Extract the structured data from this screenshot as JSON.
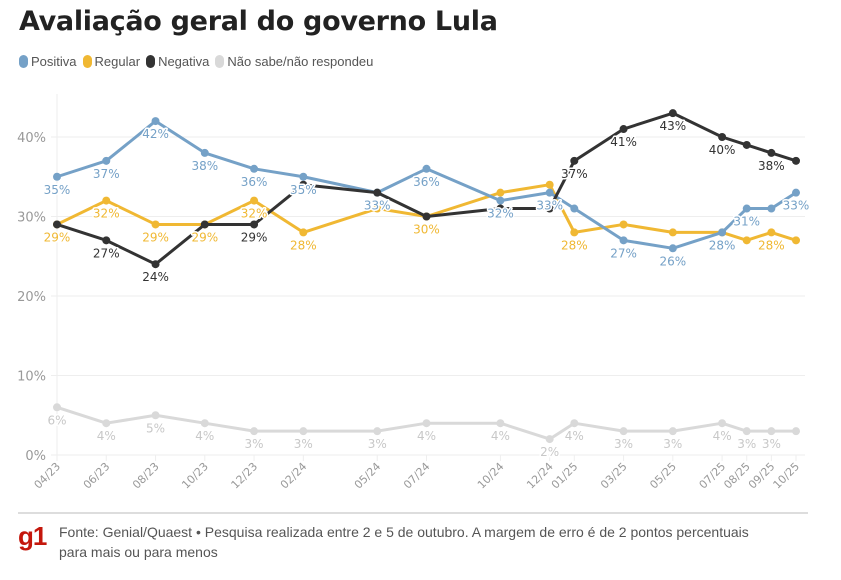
{
  "title": "Avaliação geral do governo Lula",
  "legend": [
    {
      "label": "Positiva",
      "color": "#75a1c7"
    },
    {
      "label": "Regular",
      "color": "#f0b833"
    },
    {
      "label": "Negativa",
      "color": "#333333"
    },
    {
      "label": "Não sabe/não respondeu",
      "color": "#d9d9d9"
    }
  ],
  "footer": {
    "logo": "g1",
    "source": "Fonte: Genial/Quaest • Pesquisa realizada entre 2 e 5 de outubro. A margem de erro é de 2 pontos percentuais para mais ou para menos"
  },
  "chart_data": {
    "type": "line",
    "title": "Avaliação geral do governo Lula",
    "xlabel": "",
    "ylabel": "",
    "ylim": [
      0,
      45
    ],
    "yticks": [
      0,
      10,
      20,
      30,
      40
    ],
    "ytick_labels": [
      "0%",
      "10%",
      "20%",
      "30%",
      "40%"
    ],
    "grid": true,
    "legend_position": "top-left",
    "x_months": [
      0,
      2,
      4,
      6,
      8,
      10,
      13,
      15,
      18,
      20,
      21,
      23,
      25,
      27,
      28,
      29,
      30
    ],
    "categories": [
      "04/23",
      "06/23",
      "08/23",
      "10/23",
      "12/23",
      "02/24",
      "05/24",
      "07/24",
      "10/24",
      "12/24",
      "01/25",
      "03/25",
      "05/25",
      "07/25",
      "08/25",
      "09/25",
      "10/25"
    ],
    "series": [
      {
        "name": "Não sabe/não respondeu",
        "color": "#d9d9d9",
        "label_color": "#c8c8c8",
        "values": [
          6,
          4,
          5,
          4,
          3,
          3,
          3,
          4,
          4,
          2,
          4,
          3,
          3,
          4,
          3,
          3,
          3
        ],
        "labels": [
          "6%",
          "4%",
          "5%",
          "4%",
          "3%",
          "3%",
          "3%",
          "4%",
          "4%",
          "2%",
          "4%",
          "3%",
          "3%",
          "4%",
          "3%",
          "3%",
          null
        ]
      },
      {
        "name": "Regular",
        "color": "#f0b833",
        "label_color": "#f0b833",
        "values": [
          29,
          32,
          29,
          29,
          32,
          28,
          31,
          30,
          33,
          34,
          28,
          29,
          28,
          28,
          27,
          28,
          27
        ],
        "labels": [
          "29%",
          "32%",
          "29%",
          "29%",
          "32%",
          "28%",
          null,
          "30%",
          null,
          null,
          "28%",
          null,
          null,
          null,
          null,
          "28%",
          null
        ]
      },
      {
        "name": "Positiva",
        "color": "#75a1c7",
        "label_color": "#75a1c7",
        "values": [
          35,
          37,
          42,
          38,
          36,
          35,
          33,
          36,
          32,
          33,
          31,
          27,
          26,
          28,
          31,
          31,
          33
        ],
        "labels": [
          "35%",
          "37%",
          "42%",
          "38%",
          "36%",
          "35%",
          "33%",
          "36%",
          "32%",
          "33%",
          null,
          "27%",
          "26%",
          "28%",
          "31%",
          null,
          "33%"
        ]
      },
      {
        "name": "Negativa",
        "color": "#333333",
        "label_color": "#333333",
        "values": [
          29,
          27,
          24,
          29,
          29,
          34,
          33,
          30,
          31,
          31,
          37,
          41,
          43,
          40,
          39,
          38,
          37
        ],
        "labels": [
          null,
          "27%",
          "24%",
          null,
          "29%",
          null,
          null,
          null,
          null,
          null,
          "37%",
          "41%",
          "43%",
          "40%",
          null,
          "38%",
          null
        ]
      }
    ]
  }
}
